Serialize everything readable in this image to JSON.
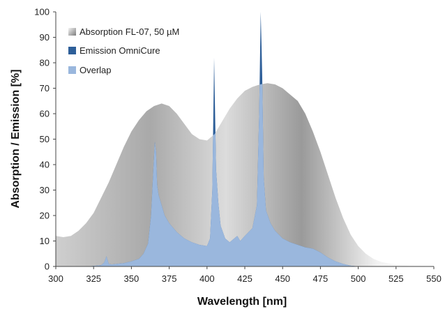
{
  "chart_data": {
    "type": "area",
    "xlabel": "Wavelength [nm]",
    "ylabel": "Absorption / Emission [%]",
    "xlim": [
      300,
      550
    ],
    "ylim": [
      0,
      100
    ],
    "x_ticks": [
      "300",
      "325",
      "350",
      "375",
      "400",
      "425",
      "450",
      "475",
      "500",
      "525",
      "550"
    ],
    "y_ticks": [
      "0",
      "10",
      "20",
      "30",
      "40",
      "50",
      "60",
      "70",
      "80",
      "90",
      "100"
    ],
    "grid": false,
    "legend_position": "top-left",
    "colors": {
      "absorption_light": "#f4f4f4",
      "absorption_dark": "#7c7c7c",
      "emission": "#2e5f99",
      "overlap": "#9ab7dd"
    },
    "series": [
      {
        "name": "Absorption FL-07, 50 µM",
        "x": [
          300,
          305,
          310,
          315,
          320,
          325,
          330,
          335,
          340,
          345,
          350,
          355,
          360,
          365,
          370,
          375,
          380,
          385,
          390,
          395,
          400,
          405,
          410,
          415,
          420,
          425,
          430,
          435,
          440,
          445,
          450,
          455,
          460,
          465,
          470,
          475,
          480,
          485,
          490,
          495,
          500,
          505,
          510,
          515,
          520,
          525,
          530,
          540,
          550
        ],
        "values": [
          12,
          11.5,
          12,
          14,
          17,
          21,
          27,
          33,
          40,
          47,
          53,
          57.5,
          61,
          63,
          64,
          63,
          60,
          56,
          52,
          50,
          49.5,
          52,
          57,
          62,
          66,
          69,
          70.5,
          71.5,
          72,
          71.5,
          70,
          67.5,
          65,
          60,
          53,
          45,
          36,
          27,
          19,
          12.5,
          8,
          5,
          3,
          1.8,
          1.2,
          0.8,
          0.5,
          0.3,
          0.2
        ]
      },
      {
        "name": "Emission OmniCure",
        "x": [
          300,
          310,
          320,
          325,
          330,
          332,
          333.5,
          335,
          337,
          340,
          345,
          350,
          355,
          358,
          361,
          363,
          364.5,
          365.5,
          366.3,
          367,
          368,
          370,
          372,
          375,
          380,
          385,
          390,
          395,
          400,
          402,
          403.5,
          404.7,
          405.2,
          406,
          407.5,
          409,
          412,
          415,
          420,
          422,
          425,
          430,
          433,
          434.5,
          435.5,
          436,
          436.5,
          437.5,
          439,
          442,
          445,
          450,
          455,
          460,
          465,
          470,
          475,
          480,
          485,
          490,
          495,
          500,
          550
        ],
        "values": [
          0,
          0,
          0,
          0.2,
          0.5,
          1.5,
          4,
          1,
          0.8,
          1,
          1.3,
          2,
          3,
          5,
          9,
          20,
          38,
          49,
          45,
          32,
          28,
          24,
          20,
          17,
          13.5,
          11,
          9.5,
          8.5,
          8,
          11,
          30,
          82,
          65,
          38,
          25,
          16,
          11,
          9.5,
          12,
          10,
          12,
          15,
          24,
          60,
          100,
          88,
          75,
          35,
          22,
          17,
          14,
          11,
          9.5,
          8.5,
          7.5,
          7,
          5.5,
          3.5,
          2,
          1,
          0.3,
          0,
          0
        ]
      }
    ],
    "overlap_label": "Overlap"
  }
}
